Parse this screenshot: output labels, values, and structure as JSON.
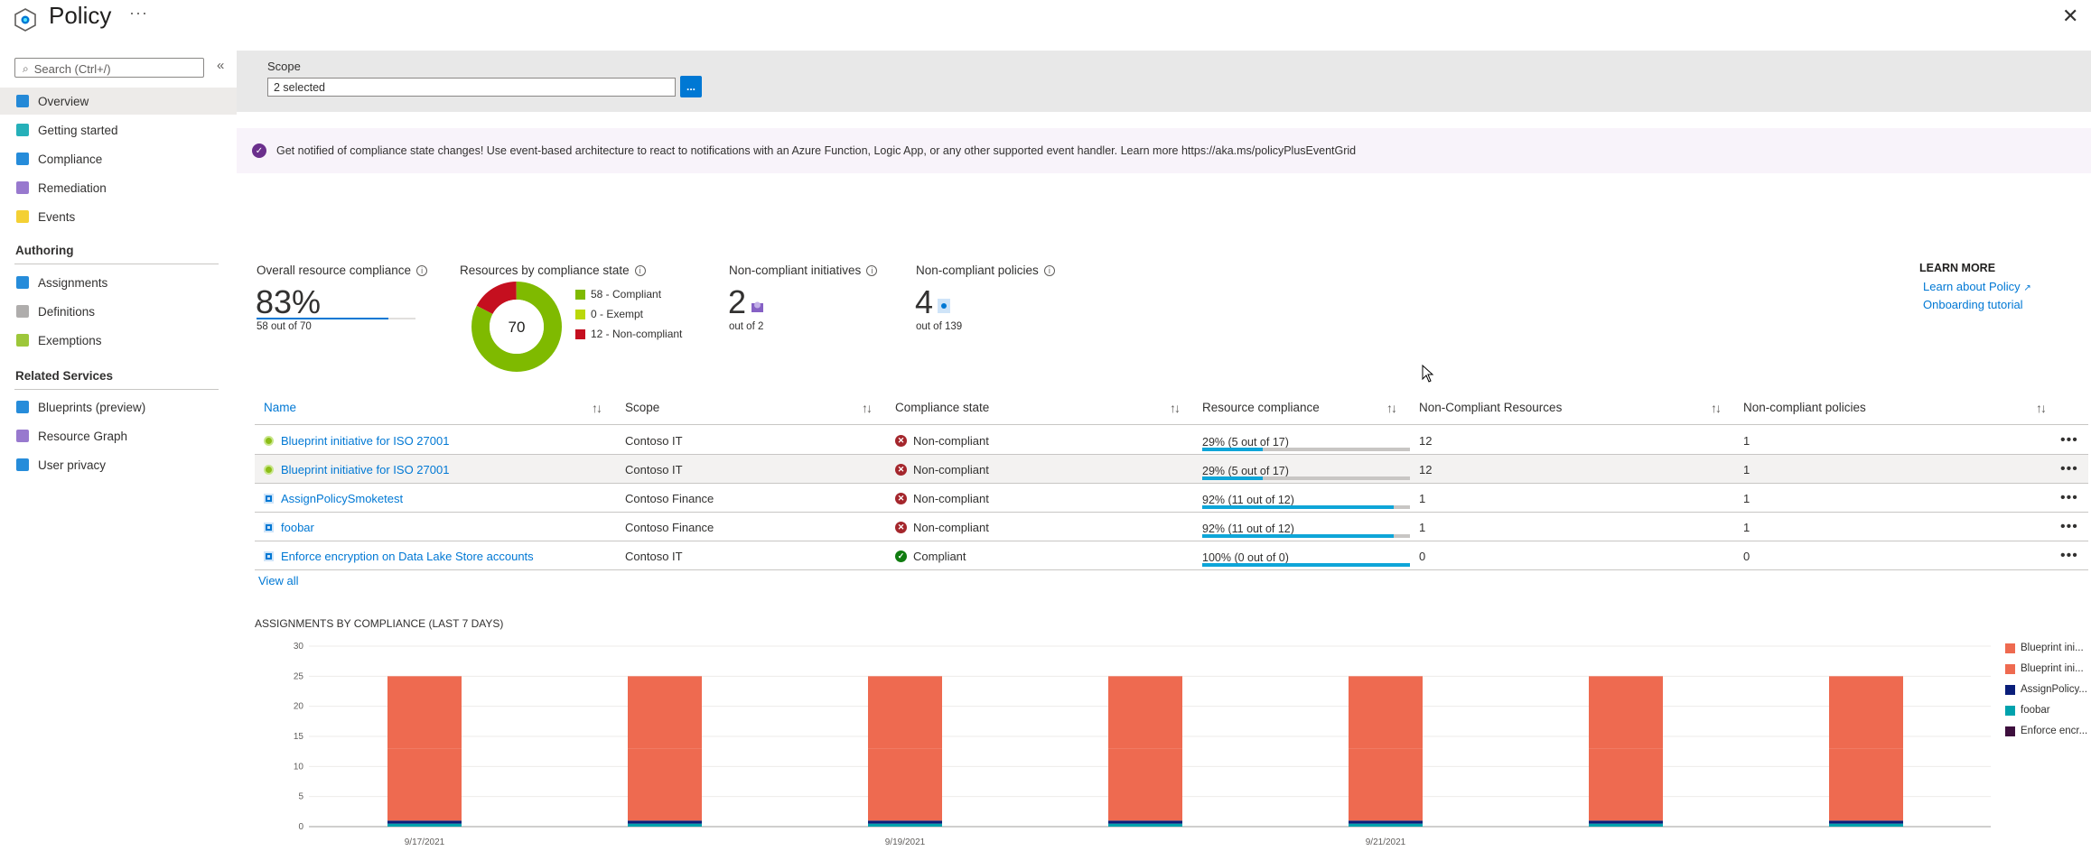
{
  "header": {
    "title": "Policy",
    "more": "···",
    "close": "✕"
  },
  "sidebar": {
    "search_placeholder": "Search (Ctrl+/)",
    "collapse": "«",
    "items": [
      {
        "label": "Overview",
        "icon": "overview-icon",
        "color": "#0078d4",
        "active": true
      },
      {
        "label": "Getting started",
        "icon": "rocket-icon",
        "color": "#00a2ad"
      },
      {
        "label": "Compliance",
        "icon": "compliance-doc-icon",
        "color": "#0078d4"
      },
      {
        "label": "Remediation",
        "icon": "remediation-icon",
        "color": "#8661c5"
      },
      {
        "label": "Events",
        "icon": "lightning-icon",
        "color": "#f2c811"
      }
    ],
    "authoring_title": "Authoring",
    "authoring": [
      {
        "label": "Assignments",
        "icon": "assignments-icon",
        "color": "#0078d4"
      },
      {
        "label": "Definitions",
        "icon": "definitions-icon",
        "color": "#a19f9d"
      },
      {
        "label": "Exemptions",
        "icon": "exemptions-icon",
        "color": "#8cbd18"
      }
    ],
    "related_title": "Related Services",
    "related": [
      {
        "label": "Blueprints (preview)",
        "icon": "blueprints-icon",
        "color": "#0078d4"
      },
      {
        "label": "Resource Graph",
        "icon": "resource-graph-icon",
        "color": "#8661c5"
      },
      {
        "label": "User privacy",
        "icon": "user-privacy-icon",
        "color": "#0078d4"
      }
    ]
  },
  "scope": {
    "label": "Scope",
    "value": "2 selected",
    "button": "..."
  },
  "banner": {
    "text": "Get notified of compliance state changes! Use event-based architecture to react to notifications with an Azure Function, Logic App, or any other supported event handler. Learn more https://aka.ms/policyPlusEventGrid"
  },
  "metrics": {
    "overall": {
      "label": "Overall resource compliance",
      "value": "83%",
      "sub": "58 out of 70",
      "fraction": 0.83
    },
    "by_state": {
      "label": "Resources by compliance state",
      "center": "70",
      "legend": [
        {
          "text": "58 - Compliant",
          "value": 58,
          "color": "#7fba00"
        },
        {
          "text": "0 - Exempt",
          "value": 0,
          "color": "#bad80a"
        },
        {
          "text": "12 - Non-compliant",
          "value": 12,
          "color": "#c50f1f"
        }
      ]
    },
    "initiatives": {
      "label": "Non-compliant initiatives",
      "value": "2",
      "sub": "out of 2"
    },
    "policies": {
      "label": "Non-compliant policies",
      "value": "4",
      "sub": "out of 139"
    }
  },
  "learn_more": {
    "title": "LEARN MORE",
    "links": [
      "Learn about Policy",
      "Onboarding tutorial"
    ]
  },
  "table": {
    "headers": [
      "Name",
      "Scope",
      "Compliance state",
      "Resource compliance",
      "Non-Compliant Resources",
      "Non-compliant policies"
    ],
    "rows": [
      {
        "name": "Blueprint initiative for ISO 27001",
        "type": "initiative",
        "scope": "Contoso IT",
        "state": "Non-compliant",
        "compliant": false,
        "rc": "29% (5 out of 17)",
        "pct": 0.29,
        "ncr": "12",
        "ncp": "1",
        "selected": false
      },
      {
        "name": "Blueprint initiative for ISO 27001",
        "type": "initiative",
        "scope": "Contoso IT",
        "state": "Non-compliant",
        "compliant": false,
        "rc": "29% (5 out of 17)",
        "pct": 0.29,
        "ncr": "12",
        "ncp": "1",
        "selected": true
      },
      {
        "name": "AssignPolicySmoketest",
        "type": "policy",
        "scope": "Contoso Finance",
        "state": "Non-compliant",
        "compliant": false,
        "rc": "92% (11 out of 12)",
        "pct": 0.92,
        "ncr": "1",
        "ncp": "1",
        "selected": false
      },
      {
        "name": "foobar",
        "type": "policy",
        "scope": "Contoso Finance",
        "state": "Non-compliant",
        "compliant": false,
        "rc": "92% (11 out of 12)",
        "pct": 0.92,
        "ncr": "1",
        "ncp": "1",
        "selected": false
      },
      {
        "name": "Enforce encryption on Data Lake Store accounts",
        "type": "policy",
        "scope": "Contoso IT",
        "state": "Compliant",
        "compliant": true,
        "rc": "100% (0 out of 0)",
        "pct": 1.0,
        "ncr": "0",
        "ncp": "0",
        "selected": false
      }
    ],
    "view_all": "View all"
  },
  "chart_data": {
    "type": "bar",
    "stacked": true,
    "title": "ASSIGNMENTS BY COMPLIANCE (LAST 7 DAYS)",
    "ylim": [
      0,
      30
    ],
    "yticks": [
      0,
      5,
      10,
      15,
      20,
      25,
      30
    ],
    "xtick_labels": [
      "9/17/2021",
      "9/19/2021",
      "9/21/2021"
    ],
    "bar_count": 7,
    "series": [
      {
        "name": "Enforce encr...",
        "color": "#3d0f3d",
        "values": [
          0,
          0,
          0,
          0,
          0,
          0,
          0
        ]
      },
      {
        "name": "foobar",
        "color": "#00a2ad",
        "values": [
          0.5,
          0.5,
          0.5,
          0.5,
          0.5,
          0.5,
          0.5
        ]
      },
      {
        "name": "AssignPolicy...",
        "color": "#0a1e7a",
        "values": [
          0.5,
          0.5,
          0.5,
          0.5,
          0.5,
          0.5,
          0.5
        ]
      },
      {
        "name": "Blueprint ini...",
        "color": "#ee6a50",
        "values": [
          12,
          12,
          12,
          12,
          12,
          12,
          12
        ]
      },
      {
        "name": "Blueprint ini...",
        "color": "#ee6a50",
        "values": [
          12,
          12,
          12,
          12,
          12,
          12,
          12
        ]
      }
    ],
    "legend": [
      {
        "name": "Blueprint ini...",
        "color": "#ee6a50"
      },
      {
        "name": "Blueprint ini...",
        "color": "#ee6a50"
      },
      {
        "name": "AssignPolicy...",
        "color": "#0a1e7a"
      },
      {
        "name": "foobar",
        "color": "#00a2ad"
      },
      {
        "name": "Enforce encr...",
        "color": "#3d0f3d"
      }
    ],
    "legend_position": "right",
    "grid": true
  }
}
